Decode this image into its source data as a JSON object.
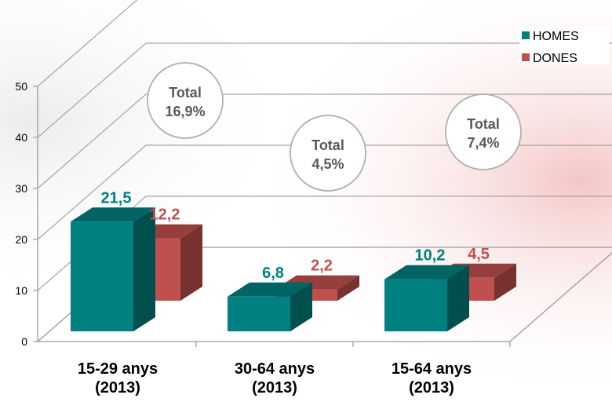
{
  "chart_data": {
    "type": "bar",
    "categories": [
      [
        "15-29 anys",
        "(2013)"
      ],
      [
        "30-64 anys",
        "(2013)"
      ],
      [
        "15-64 anys",
        "(2013)"
      ]
    ],
    "series": [
      {
        "name": "HOMES",
        "values": [
          21.5,
          6.8,
          10.2
        ],
        "labels": [
          "21,5",
          "6,8",
          "10,2"
        ],
        "color": "#008080"
      },
      {
        "name": "DONES",
        "values": [
          12.2,
          2.2,
          4.5
        ],
        "labels": [
          "12,2",
          "2,2",
          "4,5"
        ],
        "color": "#C0504D"
      }
    ],
    "totals": [
      {
        "label": "Total",
        "value": "16,9%"
      },
      {
        "label": "Total",
        "value": "4,5%"
      },
      {
        "label": "Total",
        "value": "7,4%"
      }
    ],
    "yticks": [
      "0",
      "10",
      "20",
      "30",
      "40",
      "50"
    ],
    "ylim": [
      0,
      50
    ],
    "grid": true,
    "legend_position": "top-right",
    "style": "3d"
  }
}
